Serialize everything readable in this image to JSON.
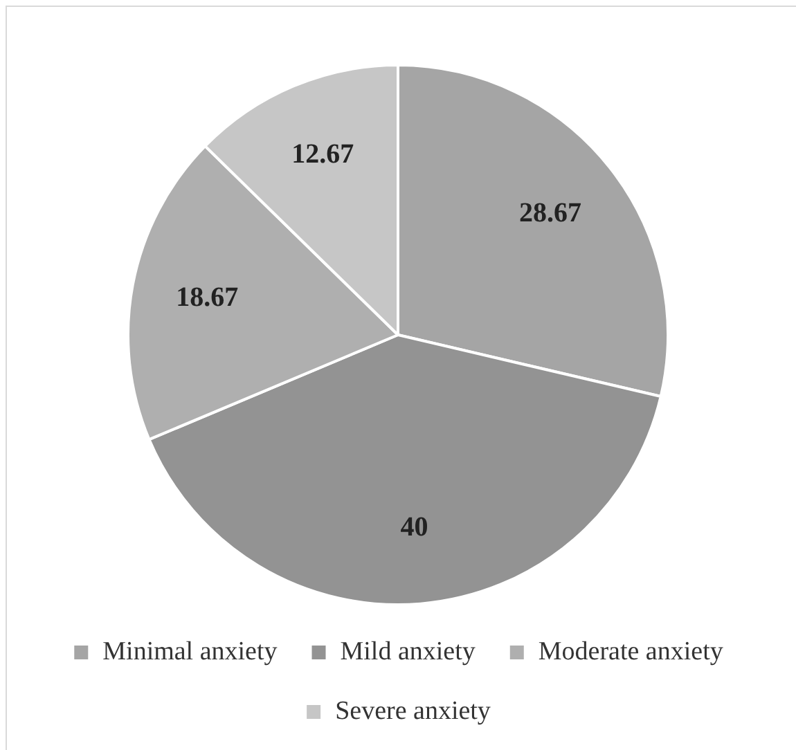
{
  "chart_data": {
    "type": "pie",
    "categories": [
      "Minimal anxiety",
      "Mild anxiety",
      "Moderate anxiety",
      "Severe anxiety"
    ],
    "values": [
      28.67,
      40,
      18.67,
      12.67
    ],
    "colors": [
      "#a5a5a5",
      "#939393",
      "#afafaf",
      "#c6c6c6"
    ],
    "data_labels": true,
    "legend": "bottom"
  }
}
